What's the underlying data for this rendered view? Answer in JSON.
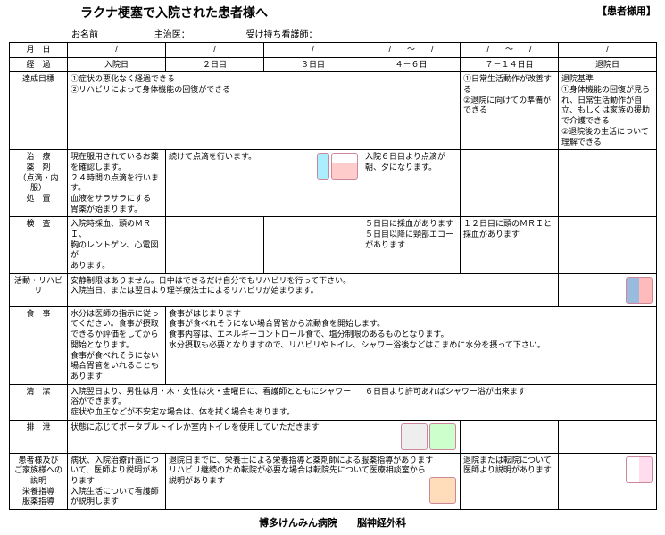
{
  "header": {
    "title": "ラクナ梗塞で入院された患者様へ",
    "corner_label": "【患者様用】",
    "name_label": "お名前",
    "doctor_label": "主治医：",
    "nurse_label": "受け持ち看護師："
  },
  "cols": {
    "date": "月　日",
    "progress": "経　過",
    "d1": "入院日",
    "d2": "２日目",
    "d3": "３日目",
    "d46": "４－６日",
    "d714": "７－１４日目",
    "discharge": "退院日",
    "range": "/　　～　　/"
  },
  "rows": {
    "goal": "達成目標",
    "treatment": "治　療\n薬　剤\n（点滴・内服）\n処　置",
    "exam": "検　査",
    "activity": "活動・リハビリ",
    "meal": "食　事",
    "clean": "清　潔",
    "excretion": "排　泄",
    "explain": "患者様及び\nご家族様への\n説明\n栄養指導\n服薬指導"
  },
  "goal": {
    "d1": "①症状の悪化なく経過できる\n②リハビリによって身体機能の回復ができる",
    "d714": "①日常生活動作が改善する\n②退院に向けての準備ができる",
    "discharge": "退院基準\n①身体機能の回復が見られ、日常生活動作が自立、もしくは家族の援助で介護できる\n②退院後の生活について理解できる"
  },
  "treatment": {
    "d1": "現在服用されているお薬を確認します。\n２４時間の点滴を行います。\n血液をサラサラにする\n胃薬が始まります。",
    "d2": "続けて点滴を行います。",
    "d46": "入院６日目より点滴が朝、夕になります。"
  },
  "exam": {
    "d1": "入院時採血、頭のＭＲＩ、\n胸のレントゲン、心電図が\nあります。",
    "d46": "５日目に採血があります\n５日目以降に頸部エコーがあります",
    "d714": "１２日目に頭のＭＲＩと採血があります"
  },
  "activity": {
    "all": "安静制限はありません。日中はできるだけ自分でもリハビリを行って下さい。\n入院当日、または翌日より理学療法士によるリハビリが始まります。"
  },
  "meal": {
    "d1": "水分は医師の指示に従ってください。食事が摂取できるか評価をしてから開始となります。\n食事が食べれそうにない場合胃管をいれることもあります",
    "d2": "食事がはじまります\n食事が食べれそうにない場合胃管から流動食を開始します。\n食事内容は、エネルギーコントロール食で、塩分制限のあるものとなります。\n水分摂取も必要となりますので、リハビリやトイレ、シャワー浴後などはこまめに水分を摂って下さい。"
  },
  "clean": {
    "d1": "入院翌日より、男性は月・木・女性は火・金曜日に、看護師とともにシャワー浴ができます。\n症状や血圧などが不安定な場合は、体を拭く場合もあります。",
    "d46": "６日目より許可あればシャワー浴が出来ます"
  },
  "excretion": {
    "all": "状態に応じてポータブルトイレか室内トイレを使用していただきます"
  },
  "explain": {
    "d1": "病状、入院治療計画について、医師より説明があります\n入院生活について看護師が説明します",
    "d2": "退院日までに、栄養士による栄養指導と薬剤師による服薬指導があります\nリハビリ継続のため転院が必要な場合は転院先について医療相談室から\n説明があります",
    "d714": "退院または転院について医師より説明があります"
  },
  "footer": "博多けんみん病院　　脳神経外科"
}
